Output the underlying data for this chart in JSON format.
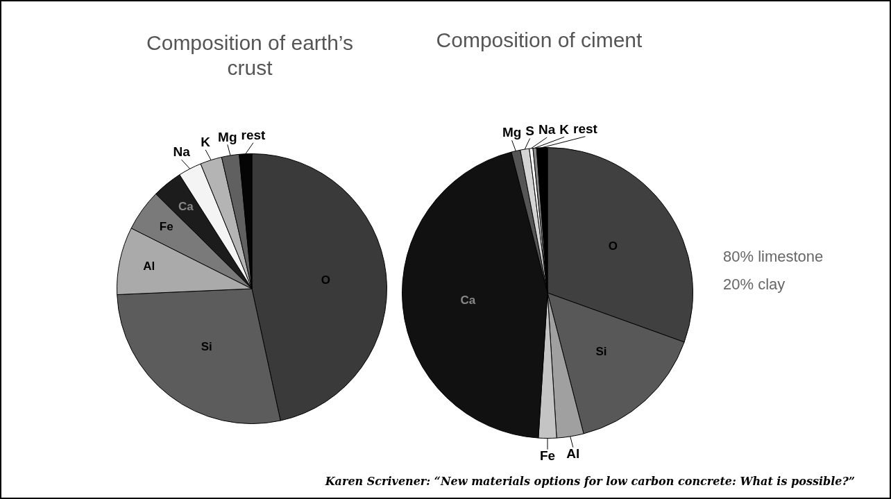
{
  "chart_data": [
    {
      "type": "pie",
      "title": "Composition of earth’s crust",
      "categories": [
        "O",
        "Si",
        "Al",
        "Fe",
        "Ca",
        "Na",
        "K",
        "Mg",
        "rest"
      ],
      "values": [
        46.6,
        27.7,
        8.1,
        5.0,
        3.6,
        2.8,
        2.6,
        2.1,
        1.5
      ],
      "colors": [
        "#3a3a3a",
        "#5c5c5c",
        "#aaaaaa",
        "#7a7a7a",
        "#1c1c1c",
        "#f4f4f4",
        "#b4b4b4",
        "#606060",
        "#050505"
      ],
      "annotations": [
        "Karen Scrivener: “New materials options for low carbon concrete: What is possible?”"
      ]
    },
    {
      "type": "pie",
      "title": "Composition of ciment",
      "categories": [
        "O",
        "Si",
        "Al",
        "Fe",
        "Ca",
        "Mg",
        "S",
        "Na",
        "K",
        "rest"
      ],
      "values": [
        30.5,
        15.5,
        3.0,
        2.0,
        45.0,
        1.0,
        1.0,
        0.4,
        0.4,
        1.2
      ],
      "colors": [
        "#404040",
        "#585858",
        "#a0a0a0",
        "#c4c4c4",
        "#111111",
        "#555555",
        "#d4d4d4",
        "#ffffff",
        "#888888",
        "#000000"
      ],
      "annotations": [
        "80% limestone",
        "20% clay"
      ]
    }
  ]
}
